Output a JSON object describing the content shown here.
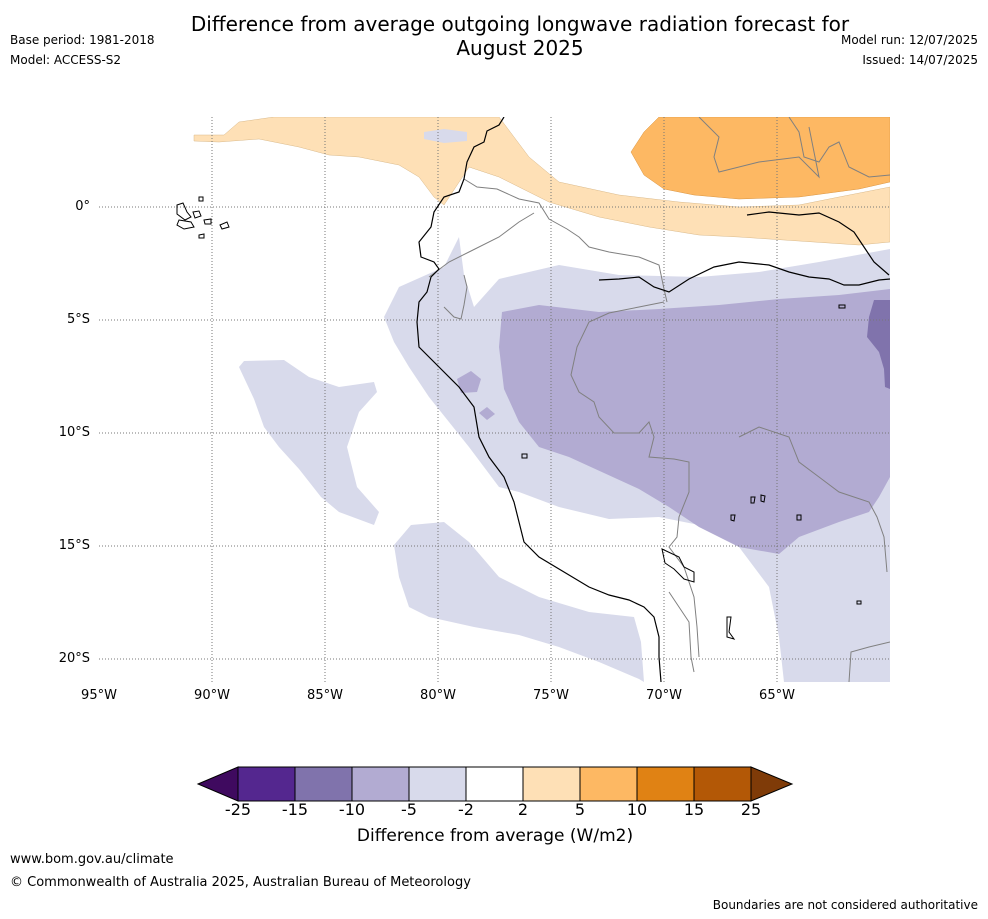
{
  "title_line1": "Difference from average outgoing longwave radiation forecast for",
  "title_line2": "August 2025",
  "base_period": "Base period: 1981-2018",
  "model": "Model: ACCESS-S2",
  "model_run": "Model run: 12/07/2025",
  "issued": "Issued: 14/07/2025",
  "lat_labels": [
    "0°",
    "5°S",
    "10°S",
    "15°S",
    "20°S"
  ],
  "lon_labels": [
    "95°W",
    "90°W",
    "85°W",
    "80°W",
    "75°W",
    "70°W",
    "65°W"
  ],
  "colorbar": {
    "ticks": [
      "-25",
      "-15",
      "-10",
      "-5",
      "-2",
      "2",
      "5",
      "10",
      "15",
      "25"
    ],
    "label": "Difference from average (W/m2)",
    "colors": [
      "#3f0a5f",
      "#54278f",
      "#8073ac",
      "#b2abd2",
      "#d8daeb",
      "#ffffff",
      "#fee0b6",
      "#fdb863",
      "#e08214",
      "#b35806",
      "#7f3b08"
    ]
  },
  "footer": {
    "url": "www.bom.gov.au/climate",
    "copyright": "© Commonwealth of Australia 2025, Australian Bureau of Meteorology",
    "disclaimer": "Boundaries are not considered authoritative"
  }
}
